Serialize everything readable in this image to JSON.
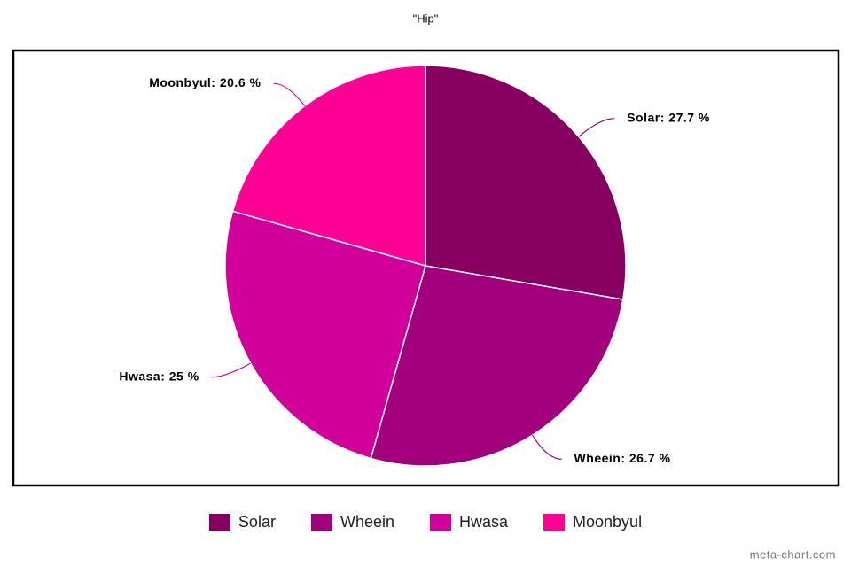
{
  "chart_data": {
    "type": "pie",
    "title": "\"Hip\"",
    "categories": [
      "Solar",
      "Wheein",
      "Hwasa",
      "Moonbyul"
    ],
    "values": [
      27.7,
      26.7,
      25,
      20.6
    ],
    "value_labels": [
      "Solar: 27.7 %",
      "Wheein: 26.7 %",
      "Hwasa: 25 %",
      "Moonbyul: 20.6 %"
    ],
    "colors": [
      "#870060",
      "#a3007d",
      "#d1009b",
      "#ff0095"
    ],
    "credit": "meta-chart.com"
  }
}
